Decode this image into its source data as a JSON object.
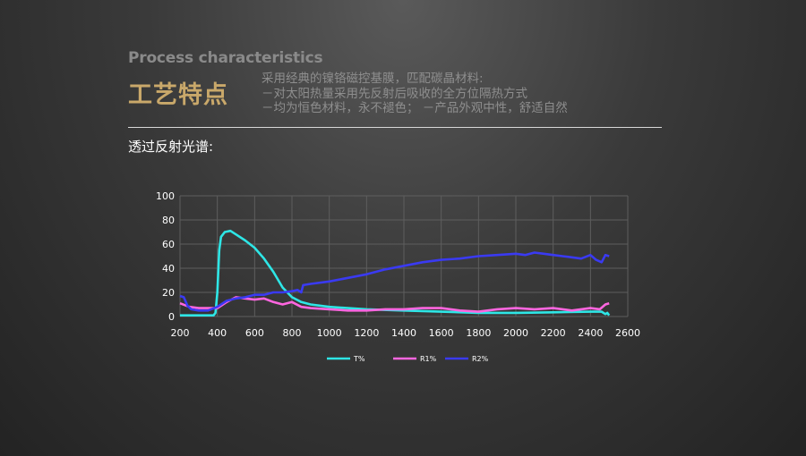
{
  "header": {
    "subtitle_en": "Process characteristics",
    "title_cn": "工艺特点",
    "desc_lines": [
      "采用经典的镍铬磁控基膜，匹配碳晶材料:",
      "－对太阳热量采用先反射后吸收的全方位隔热方式",
      "－均为恒色材料，永不褪色；  －产品外观中性，舒适自然"
    ]
  },
  "section": {
    "label": "透过反射光谱:"
  },
  "chart_data": {
    "type": "line",
    "title": "",
    "xlabel": "",
    "ylabel": "",
    "xlim": [
      200,
      2600
    ],
    "ylim": [
      0,
      100
    ],
    "x_ticks": [
      200,
      400,
      600,
      800,
      1000,
      1200,
      1400,
      1600,
      1800,
      2000,
      2200,
      2400,
      2600
    ],
    "y_ticks": [
      0,
      20,
      40,
      60,
      80,
      100
    ],
    "grid": true,
    "legend": "bottom",
    "series": [
      {
        "name": "T%",
        "color": "#2ee6e6",
        "points": [
          [
            200,
            1
          ],
          [
            380,
            1
          ],
          [
            390,
            3
          ],
          [
            400,
            20
          ],
          [
            410,
            55
          ],
          [
            420,
            66
          ],
          [
            440,
            70
          ],
          [
            470,
            71
          ],
          [
            500,
            68
          ],
          [
            550,
            63
          ],
          [
            600,
            57
          ],
          [
            650,
            48
          ],
          [
            700,
            37
          ],
          [
            750,
            24
          ],
          [
            800,
            16
          ],
          [
            850,
            12
          ],
          [
            900,
            10
          ],
          [
            1000,
            8
          ],
          [
            1100,
            7
          ],
          [
            1200,
            6
          ],
          [
            1400,
            5
          ],
          [
            1600,
            4
          ],
          [
            1800,
            3
          ],
          [
            2000,
            3
          ],
          [
            2200,
            3.5
          ],
          [
            2400,
            4
          ],
          [
            2460,
            4
          ],
          [
            2480,
            2
          ],
          [
            2490,
            3
          ],
          [
            2500,
            1
          ]
        ]
      },
      {
        "name": "R1%",
        "color": "#ff66e0",
        "points": [
          [
            200,
            11
          ],
          [
            250,
            8
          ],
          [
            300,
            7
          ],
          [
            350,
            7
          ],
          [
            400,
            7
          ],
          [
            450,
            12
          ],
          [
            500,
            16
          ],
          [
            550,
            15
          ],
          [
            600,
            14
          ],
          [
            650,
            15
          ],
          [
            700,
            12
          ],
          [
            750,
            10
          ],
          [
            800,
            12
          ],
          [
            850,
            8
          ],
          [
            900,
            7
          ],
          [
            1000,
            6
          ],
          [
            1100,
            5
          ],
          [
            1200,
            5
          ],
          [
            1300,
            6
          ],
          [
            1400,
            6
          ],
          [
            1500,
            7
          ],
          [
            1600,
            7
          ],
          [
            1700,
            5
          ],
          [
            1800,
            4
          ],
          [
            1900,
            6
          ],
          [
            2000,
            7
          ],
          [
            2100,
            6
          ],
          [
            2200,
            7
          ],
          [
            2300,
            5
          ],
          [
            2400,
            7
          ],
          [
            2450,
            6
          ],
          [
            2480,
            10
          ],
          [
            2500,
            11
          ]
        ]
      },
      {
        "name": "R2%",
        "color": "#3a3af2",
        "points": [
          [
            200,
            17
          ],
          [
            220,
            16
          ],
          [
            240,
            9
          ],
          [
            260,
            6
          ],
          [
            300,
            5
          ],
          [
            350,
            5
          ],
          [
            400,
            8
          ],
          [
            450,
            13
          ],
          [
            500,
            15
          ],
          [
            550,
            16
          ],
          [
            600,
            18
          ],
          [
            650,
            18
          ],
          [
            700,
            20
          ],
          [
            750,
            20
          ],
          [
            800,
            21
          ],
          [
            830,
            22
          ],
          [
            850,
            20
          ],
          [
            860,
            26
          ],
          [
            900,
            27
          ],
          [
            1000,
            29
          ],
          [
            1100,
            32
          ],
          [
            1200,
            35
          ],
          [
            1300,
            39
          ],
          [
            1400,
            42
          ],
          [
            1500,
            45
          ],
          [
            1600,
            47
          ],
          [
            1700,
            48
          ],
          [
            1800,
            50
          ],
          [
            1900,
            51
          ],
          [
            2000,
            52
          ],
          [
            2050,
            51
          ],
          [
            2100,
            53
          ],
          [
            2150,
            52
          ],
          [
            2200,
            51
          ],
          [
            2250,
            50
          ],
          [
            2300,
            49
          ],
          [
            2350,
            48
          ],
          [
            2400,
            51
          ],
          [
            2430,
            47
          ],
          [
            2460,
            45
          ],
          [
            2480,
            51
          ],
          [
            2500,
            50
          ]
        ]
      }
    ]
  }
}
